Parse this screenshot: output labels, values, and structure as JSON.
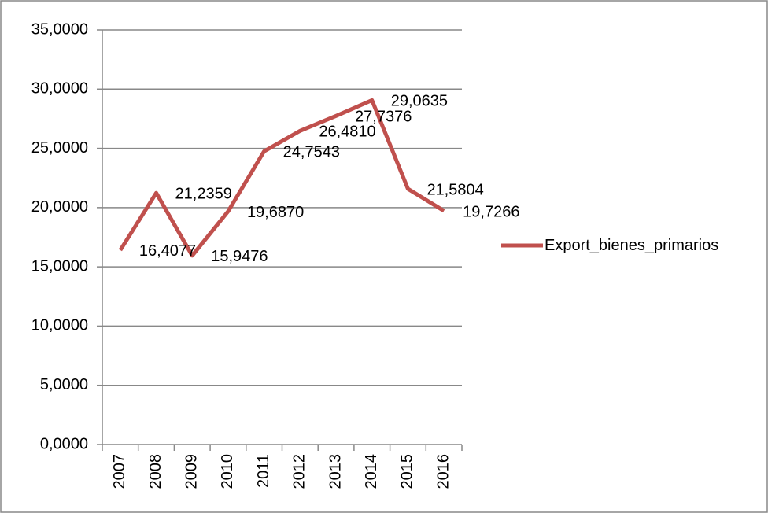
{
  "chart_data": {
    "type": "line",
    "categories": [
      "2007",
      "2008",
      "2009",
      "2010",
      "2011",
      "2012",
      "2013",
      "2014",
      "2015",
      "2016"
    ],
    "series": [
      {
        "name": "Export_bienes_primarios",
        "color": "#c0504d",
        "values": [
          16.4077,
          21.2359,
          15.9476,
          19.687,
          24.7543,
          26.481,
          27.7376,
          29.0635,
          21.5804,
          19.7266
        ],
        "value_labels": [
          "16,4077",
          "21,2359",
          "15,9476",
          "19,6870",
          "24,7543",
          "26,4810",
          "27,7376",
          "29,0635",
          "21,5804",
          "19,7266"
        ]
      }
    ],
    "ylim": [
      0,
      35
    ],
    "yticks": [
      {
        "value": 0,
        "label": "0,0000"
      },
      {
        "value": 5,
        "label": "5,0000"
      },
      {
        "value": 10,
        "label": "10,0000"
      },
      {
        "value": 15,
        "label": "15,0000"
      },
      {
        "value": 20,
        "label": "20,0000"
      },
      {
        "value": 25,
        "label": "25,0000"
      },
      {
        "value": 30,
        "label": "30,0000"
      },
      {
        "value": 35,
        "label": "35,0000"
      }
    ],
    "grid": true,
    "legend": "right"
  }
}
